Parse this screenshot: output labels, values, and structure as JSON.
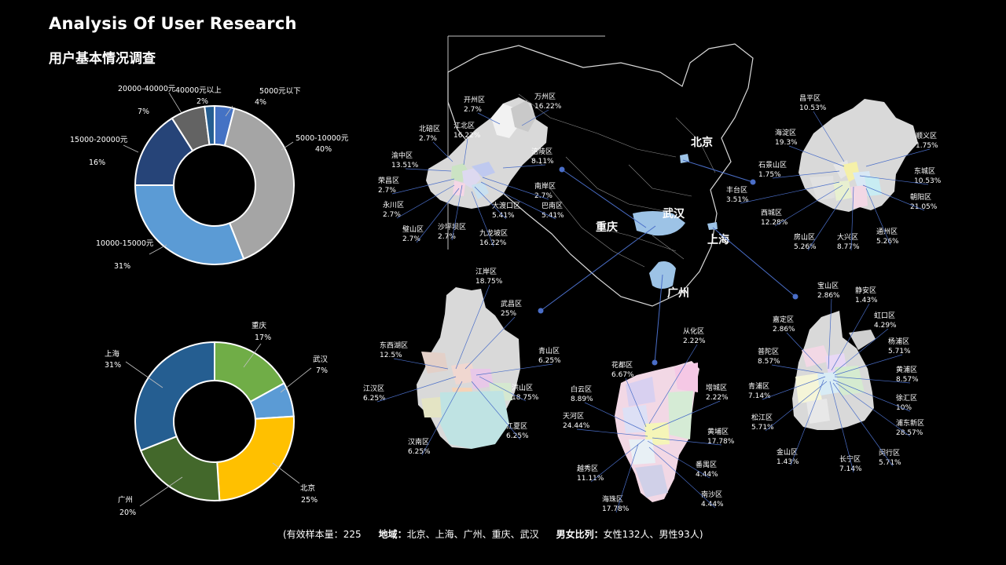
{
  "header": {
    "title": "Analysis Of User Research",
    "subtitle": "用户基本情况调查"
  },
  "chart_data": [
    {
      "type": "pie",
      "name": "income",
      "donut": true,
      "categories": [
        "5000元以下",
        "5000-10000元",
        "10000-15000元",
        "15000-20000元",
        "20000-40000元",
        "40000元以上"
      ],
      "values": [
        4,
        40,
        31,
        16,
        7,
        2
      ],
      "value_labels": [
        "4%",
        "40%",
        "31%",
        "16%",
        "7%",
        "2%"
      ],
      "colors": [
        "#4472C4",
        "#A5A5A5",
        "#5B9BD5",
        "#264478",
        "#636363",
        "#255E91"
      ]
    },
    {
      "type": "pie",
      "name": "city",
      "donut": true,
      "categories": [
        "重庆",
        "武汉",
        "北京",
        "广州",
        "上海"
      ],
      "values": [
        17,
        7,
        25,
        20,
        31
      ],
      "value_labels": [
        "17%",
        "7%",
        "25%",
        "20%",
        "31%"
      ],
      "colors": [
        "#70AD47",
        "#5B9BD5",
        "#FFC000",
        "#43682B",
        "#255E91"
      ]
    }
  ],
  "map": {
    "cities": [
      {
        "name": "北京"
      },
      {
        "name": "武汉"
      },
      {
        "name": "重庆"
      },
      {
        "name": "上海"
      },
      {
        "name": "广州"
      }
    ],
    "districts": {
      "chongqing": [
        {
          "name": "开州区",
          "value": "2.7%"
        },
        {
          "name": "万州区",
          "value": "16.22%"
        },
        {
          "name": "北碚区",
          "value": "2.7%"
        },
        {
          "name": "江北区",
          "value": "16.22%"
        },
        {
          "name": "涪陵区",
          "value": "8.11%"
        },
        {
          "name": "渝中区",
          "value": "13.51%"
        },
        {
          "name": "荣昌区",
          "value": "2.7%"
        },
        {
          "name": "南岸区",
          "value": "2.7%"
        },
        {
          "name": "大渡口区",
          "value": "5.41%"
        },
        {
          "name": "巴南区",
          "value": "5.41%"
        },
        {
          "name": "永川区",
          "value": "2.7%"
        },
        {
          "name": "璧山区",
          "value": "2.7%"
        },
        {
          "name": "沙坪坝区",
          "value": "2.7%"
        },
        {
          "name": "九龙坡区",
          "value": "16.22%"
        }
      ],
      "beijing": [
        {
          "name": "昌平区",
          "value": "10.53%"
        },
        {
          "name": "海淀区",
          "value": "19.3%"
        },
        {
          "name": "顺义区",
          "value": "1.75%"
        },
        {
          "name": "石景山区",
          "value": "1.75%"
        },
        {
          "name": "东城区",
          "value": "10.53%"
        },
        {
          "name": "丰台区",
          "value": "3.51%"
        },
        {
          "name": "朝阳区",
          "value": "21.05%"
        },
        {
          "name": "西城区",
          "value": "12.28%"
        },
        {
          "name": "房山区",
          "value": "5.26%"
        },
        {
          "name": "大兴区",
          "value": "8.77%"
        },
        {
          "name": "通州区",
          "value": "5.26%"
        }
      ],
      "wuhan": [
        {
          "name": "江岸区",
          "value": "18.75%"
        },
        {
          "name": "武昌区",
          "value": "25%"
        },
        {
          "name": "东西湖区",
          "value": "12.5%"
        },
        {
          "name": "青山区",
          "value": "6.25%"
        },
        {
          "name": "江汉区",
          "value": "6.25%"
        },
        {
          "name": "洪山区",
          "value": "18.75%"
        },
        {
          "name": "江夏区",
          "value": "6.25%"
        },
        {
          "name": "汉南区",
          "value": "6.25%"
        }
      ],
      "guangzhou": [
        {
          "name": "从化区",
          "value": "2.22%"
        },
        {
          "name": "花都区",
          "value": "6.67%"
        },
        {
          "name": "增城区",
          "value": "2.22%"
        },
        {
          "name": "白云区",
          "value": "8.89%"
        },
        {
          "name": "天河区",
          "value": "24.44%"
        },
        {
          "name": "黄埔区",
          "value": "17.78%"
        },
        {
          "name": "越秀区",
          "value": "11.11%"
        },
        {
          "name": "番禺区",
          "value": "4.44%"
        },
        {
          "name": "海珠区",
          "value": "17.78%"
        },
        {
          "name": "南沙区",
          "value": "4.44%"
        }
      ],
      "shanghai": [
        {
          "name": "宝山区",
          "value": "2.86%"
        },
        {
          "name": "静安区",
          "value": "1.43%"
        },
        {
          "name": "嘉定区",
          "value": "2.86%"
        },
        {
          "name": "虹口区",
          "value": "4.29%"
        },
        {
          "name": "杨浦区",
          "value": "5.71%"
        },
        {
          "name": "普陀区",
          "value": "8.57%"
        },
        {
          "name": "黄浦区",
          "value": "8.57%"
        },
        {
          "name": "青浦区",
          "value": "7.14%"
        },
        {
          "name": "徐汇区",
          "value": "10%"
        },
        {
          "name": "松江区",
          "value": "5.71%"
        },
        {
          "name": "浦东新区",
          "value": "28.57%"
        },
        {
          "name": "金山区",
          "value": "1.43%"
        },
        {
          "name": "长宁区",
          "value": "7.14%"
        },
        {
          "name": "闵行区",
          "value": "5.71%"
        }
      ]
    }
  },
  "footer": {
    "sample_label": "(有效样本量：",
    "sample_value": "225",
    "region_label": "地域：",
    "region_value": "北京、上海、广州、重庆、武汉",
    "ratio_label": "男女比列：",
    "ratio_value": "女性132人、男性93人)"
  }
}
